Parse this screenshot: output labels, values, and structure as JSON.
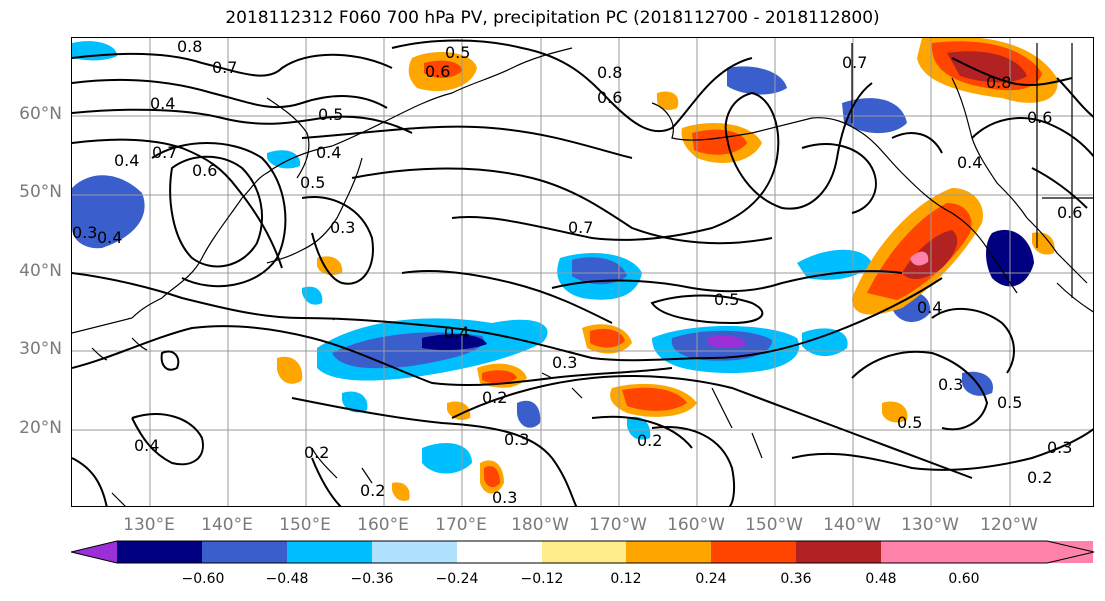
{
  "title": "2018112312 F060 700 hPa PV, precipitation PC (2018112700 - 2018112800)",
  "latitude_labels": [
    "60°N",
    "50°N",
    "40°N",
    "30°N",
    "20°N"
  ],
  "longitude_labels": [
    "130°E",
    "140°E",
    "150°E",
    "160°E",
    "170°E",
    "180°W",
    "170°W",
    "160°W",
    "150°W",
    "140°W",
    "130°W",
    "120°W"
  ],
  "contour_labels": [
    "0.8",
    "0.7",
    "0.5",
    "0.6",
    "0.4",
    "0.4",
    "0.5",
    "0.7",
    "0.6",
    "0.5",
    "0.4",
    "0.3",
    "0.3",
    "0.7",
    "0.5",
    "0.4",
    "0.3",
    "0.2",
    "0.3",
    "0.2",
    "0.2",
    "0.2",
    "0.3",
    "0.4",
    "0.4",
    "0.5",
    "0.3",
    "0.5",
    "0.6",
    "0.8",
    "0.6",
    "0.7",
    "0.4",
    "0.3",
    "0.2",
    "0.4",
    "0.6",
    "0.8"
  ],
  "colorbar": {
    "colors": [
      "#9b30d9",
      "#000080",
      "#3a5fcd",
      "#00bfff",
      "#b0e2ff",
      "#ffffff",
      "#ffec8b",
      "#ffa500",
      "#ff4500",
      "#b22222",
      "#ff82ab"
    ],
    "tick_labels": [
      "−0.60",
      "−0.48",
      "−0.36",
      "−0.24",
      "−0.12",
      "0.12",
      "0.24",
      "0.36",
      "0.48",
      "0.60"
    ]
  }
}
